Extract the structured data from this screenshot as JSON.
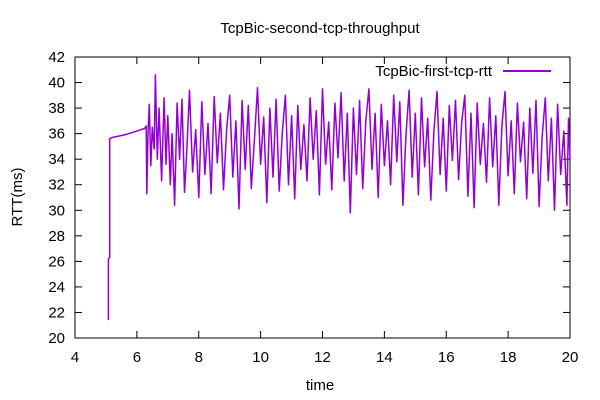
{
  "chart_data": {
    "type": "line",
    "title": "TcpBic-second-tcp-throughput",
    "xlabel": "time",
    "ylabel": "RTT(ms)",
    "xlim": [
      4,
      20
    ],
    "ylim": [
      20,
      42
    ],
    "xticks": [
      4,
      6,
      8,
      10,
      12,
      14,
      16,
      18,
      20
    ],
    "yticks": [
      20,
      22,
      24,
      26,
      28,
      30,
      32,
      34,
      36,
      38,
      40,
      42
    ],
    "grid": false,
    "legend_position": "top-right",
    "series": [
      {
        "name": "TcpBic-first-tcp-rtt",
        "color": "#9400d3",
        "points": [
          [
            5.08,
            21.4
          ],
          [
            5.08,
            26.2
          ],
          [
            5.12,
            26.3
          ],
          [
            5.12,
            35.6
          ],
          [
            5.2,
            35.7
          ],
          [
            5.6,
            35.9
          ],
          [
            6.0,
            36.2
          ],
          [
            6.25,
            36.4
          ],
          [
            6.3,
            36.6
          ],
          [
            6.32,
            31.3
          ],
          [
            6.36,
            36.0
          ],
          [
            6.4,
            38.3
          ],
          [
            6.45,
            33.5
          ],
          [
            6.5,
            36.5
          ],
          [
            6.56,
            34.8
          ],
          [
            6.6,
            40.6
          ],
          [
            6.66,
            34.0
          ],
          [
            6.72,
            38.0
          ],
          [
            6.8,
            32.3
          ],
          [
            6.88,
            38.8
          ],
          [
            6.94,
            33.6
          ],
          [
            7.0,
            37.4
          ],
          [
            7.08,
            32.0
          ],
          [
            7.14,
            36.0
          ],
          [
            7.22,
            30.4
          ],
          [
            7.3,
            38.4
          ],
          [
            7.38,
            34.0
          ],
          [
            7.46,
            38.7
          ],
          [
            7.54,
            31.4
          ],
          [
            7.62,
            35.0
          ],
          [
            7.7,
            39.4
          ],
          [
            7.8,
            33.0
          ],
          [
            7.9,
            36.3
          ],
          [
            8.0,
            31.0
          ],
          [
            8.1,
            38.5
          ],
          [
            8.2,
            32.8
          ],
          [
            8.3,
            36.8
          ],
          [
            8.4,
            31.3
          ],
          [
            8.5,
            38.9
          ],
          [
            8.6,
            33.7
          ],
          [
            8.7,
            37.6
          ],
          [
            8.8,
            31.6
          ],
          [
            8.9,
            36.3
          ],
          [
            9.0,
            39.0
          ],
          [
            9.1,
            32.6
          ],
          [
            9.2,
            37.0
          ],
          [
            9.3,
            30.1
          ],
          [
            9.4,
            38.6
          ],
          [
            9.5,
            33.2
          ],
          [
            9.6,
            38.2
          ],
          [
            9.7,
            31.7
          ],
          [
            9.8,
            35.5
          ],
          [
            9.9,
            39.6
          ],
          [
            10.0,
            33.6
          ],
          [
            10.1,
            37.3
          ],
          [
            10.2,
            30.6
          ],
          [
            10.3,
            38.0
          ],
          [
            10.4,
            32.6
          ],
          [
            10.5,
            38.7
          ],
          [
            10.6,
            31.5
          ],
          [
            10.7,
            36.1
          ],
          [
            10.8,
            39.0
          ],
          [
            10.9,
            32.0
          ],
          [
            11.0,
            37.4
          ],
          [
            11.1,
            30.9
          ],
          [
            11.2,
            38.2
          ],
          [
            11.3,
            33.2
          ],
          [
            11.4,
            36.7
          ],
          [
            11.5,
            32.3
          ],
          [
            11.6,
            38.8
          ],
          [
            11.7,
            34.0
          ],
          [
            11.8,
            37.8
          ],
          [
            11.9,
            31.2
          ],
          [
            12.0,
            39.5
          ],
          [
            12.1,
            33.6
          ],
          [
            12.2,
            36.9
          ],
          [
            12.3,
            31.6
          ],
          [
            12.4,
            38.4
          ],
          [
            12.5,
            34.1
          ],
          [
            12.6,
            39.2
          ],
          [
            12.7,
            32.3
          ],
          [
            12.8,
            37.6
          ],
          [
            12.9,
            29.8
          ],
          [
            13.0,
            38.0
          ],
          [
            13.1,
            32.8
          ],
          [
            13.2,
            38.6
          ],
          [
            13.3,
            31.7
          ],
          [
            13.4,
            37.0
          ],
          [
            13.5,
            39.5
          ],
          [
            13.6,
            33.2
          ],
          [
            13.7,
            37.6
          ],
          [
            13.8,
            31.0
          ],
          [
            13.9,
            38.3
          ],
          [
            14.0,
            33.5
          ],
          [
            14.1,
            37.0
          ],
          [
            14.2,
            32.0
          ],
          [
            14.3,
            39.0
          ],
          [
            14.4,
            33.8
          ],
          [
            14.5,
            38.5
          ],
          [
            14.6,
            30.4
          ],
          [
            14.7,
            35.9
          ],
          [
            14.8,
            39.4
          ],
          [
            14.9,
            32.6
          ],
          [
            15.0,
            37.6
          ],
          [
            15.1,
            31.2
          ],
          [
            15.2,
            38.8
          ],
          [
            15.3,
            33.4
          ],
          [
            15.4,
            37.2
          ],
          [
            15.5,
            30.8
          ],
          [
            15.6,
            36.2
          ],
          [
            15.7,
            39.3
          ],
          [
            15.8,
            32.8
          ],
          [
            15.9,
            37.2
          ],
          [
            16.0,
            31.5
          ],
          [
            16.1,
            38.2
          ],
          [
            16.2,
            33.9
          ],
          [
            16.3,
            38.6
          ],
          [
            16.4,
            32.4
          ],
          [
            16.5,
            36.9
          ],
          [
            16.6,
            39.0
          ],
          [
            16.7,
            31.1
          ],
          [
            16.8,
            37.6
          ],
          [
            16.9,
            30.2
          ],
          [
            17.0,
            38.4
          ],
          [
            17.1,
            33.6
          ],
          [
            17.2,
            36.8
          ],
          [
            17.3,
            32.2
          ],
          [
            17.4,
            38.8
          ],
          [
            17.5,
            33.4
          ],
          [
            17.6,
            37.4
          ],
          [
            17.7,
            30.4
          ],
          [
            17.8,
            36.6
          ],
          [
            17.9,
            39.3
          ],
          [
            18.0,
            32.7
          ],
          [
            18.1,
            37.0
          ],
          [
            18.2,
            31.3
          ],
          [
            18.3,
            38.4
          ],
          [
            18.4,
            33.8
          ],
          [
            18.5,
            36.9
          ],
          [
            18.6,
            30.9
          ],
          [
            18.7,
            38.0
          ],
          [
            18.8,
            32.9
          ],
          [
            18.9,
            38.6
          ],
          [
            19.0,
            30.3
          ],
          [
            19.1,
            35.8
          ],
          [
            19.2,
            38.8
          ],
          [
            19.3,
            32.3
          ],
          [
            19.4,
            37.2
          ],
          [
            19.5,
            30.0
          ],
          [
            19.6,
            38.3
          ],
          [
            19.7,
            32.8
          ],
          [
            19.8,
            36.2
          ],
          [
            19.9,
            30.4
          ],
          [
            19.95,
            37.2
          ],
          [
            20.0,
            34.0
          ]
        ]
      }
    ]
  }
}
